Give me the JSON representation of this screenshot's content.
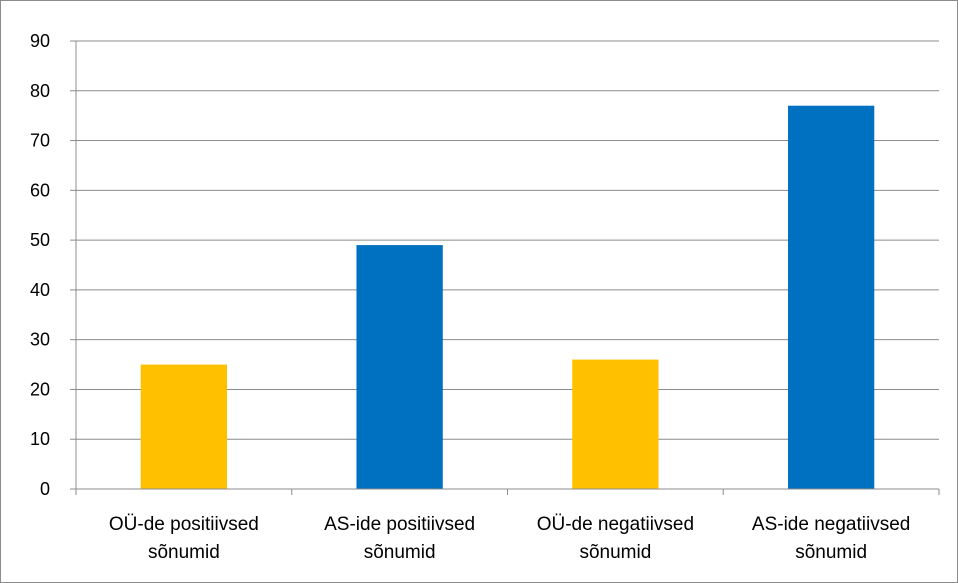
{
  "chart_data": {
    "type": "bar",
    "categories": [
      [
        "OÜ-de positiivsed",
        "sõnumid"
      ],
      [
        "AS-ide positiivsed",
        "sõnumid"
      ],
      [
        "OÜ-de negatiivsed",
        "sõnumid"
      ],
      [
        "AS-ide negatiivsed",
        "sõnumid"
      ]
    ],
    "values": [
      25,
      49,
      26,
      77
    ],
    "bar_colors": [
      "#FFC000",
      "#0070C0",
      "#FFC000",
      "#0070C0"
    ],
    "ylim": [
      0,
      90
    ],
    "yticks": [
      0,
      10,
      20,
      30,
      40,
      50,
      60,
      70,
      80,
      90
    ],
    "grid": true,
    "legend": false,
    "title": "",
    "xlabel": "",
    "ylabel": ""
  }
}
